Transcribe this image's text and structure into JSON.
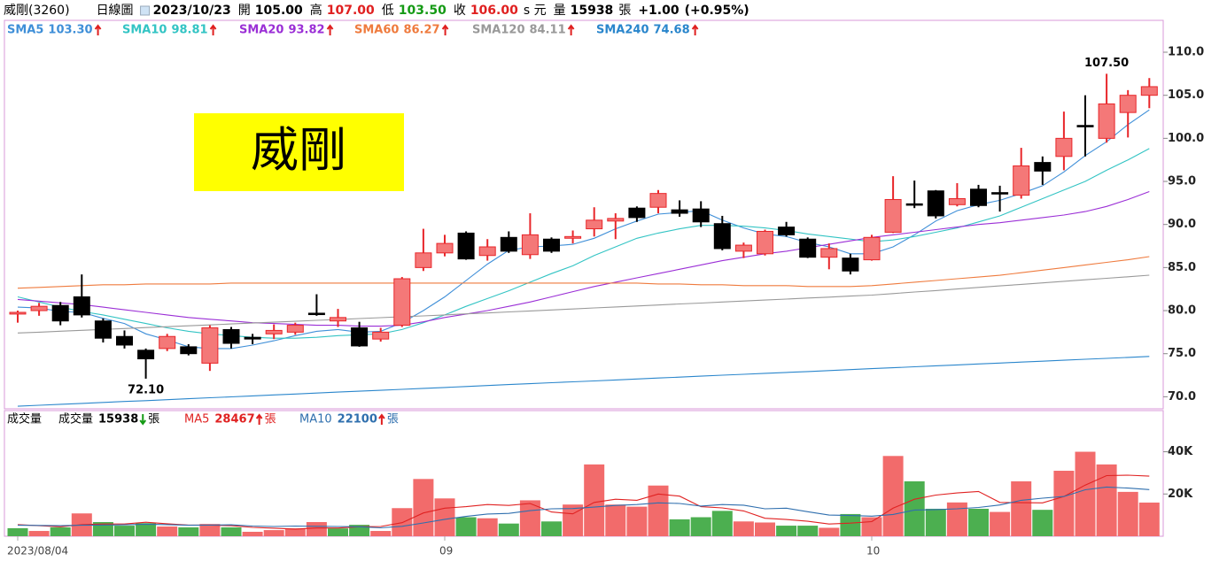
{
  "header": {
    "name": "威剛(3260)",
    "period": "日線圖",
    "date": "2023/10/23",
    "open_label": "開",
    "open": "105.00",
    "high_label": "高",
    "high": "107.00",
    "low_label": "低",
    "low": "103.50",
    "close_label": "收",
    "close": "106.00",
    "unit": "s 元",
    "volume_label": "量",
    "volume": "15938",
    "volume_unit": "張",
    "change": "+1.00",
    "change_pct": "(+0.95%)"
  },
  "chart_data": [
    {
      "type": "candlestick",
      "badge": "威剛",
      "categories": [
        "2023/08/04",
        null,
        null,
        null,
        null,
        null,
        null,
        null,
        null,
        null,
        null,
        null,
        null,
        null,
        null,
        null,
        null,
        null,
        null,
        null,
        "09",
        null,
        null,
        null,
        null,
        null,
        null,
        null,
        null,
        null,
        null,
        null,
        null,
        null,
        null,
        null,
        null,
        null,
        null,
        null,
        "10",
        null,
        null,
        null,
        null,
        null,
        null,
        null,
        null,
        null,
        null,
        null,
        null,
        null
      ],
      "open": [
        79.6,
        80.0,
        80.6,
        81.6,
        78.8,
        77.0,
        75.4,
        75.6,
        75.8,
        73.9,
        77.8,
        76.9,
        77.3,
        77.5,
        79.7,
        78.8,
        78.0,
        76.7,
        78.3,
        85.0,
        86.7,
        89.0,
        86.4,
        88.5,
        86.5,
        88.3,
        88.4,
        89.5,
        90.4,
        91.9,
        92.0,
        91.7,
        91.8,
        90.1,
        86.9,
        86.6,
        89.7,
        88.3,
        86.2,
        86.1,
        85.9,
        89.1,
        92.4,
        93.9,
        92.3,
        94.1,
        93.7,
        93.4,
        97.2,
        97.9,
        101.5,
        100.0,
        103.0,
        105.0
      ],
      "high": [
        80.0,
        80.9,
        81.0,
        84.2,
        79.1,
        77.7,
        75.6,
        77.3,
        76.1,
        78.3,
        78.1,
        77.3,
        78.4,
        78.6,
        81.9,
        80.2,
        78.7,
        78.0,
        83.9,
        89.5,
        88.8,
        89.2,
        88.3,
        89.2,
        91.3,
        88.5,
        89.3,
        92.0,
        91.3,
        92.1,
        94.0,
        92.8,
        92.7,
        91.0,
        87.9,
        89.4,
        90.3,
        88.5,
        87.8,
        86.6,
        88.8,
        95.6,
        95.1,
        94.0,
        94.8,
        94.6,
        94.5,
        98.9,
        97.9,
        103.1,
        105.0,
        107.5,
        105.6,
        107.0
      ],
      "low": [
        78.6,
        79.4,
        78.3,
        79.2,
        76.3,
        75.6,
        72.1,
        75.3,
        74.8,
        73.0,
        75.6,
        76.1,
        76.7,
        77.2,
        79.4,
        78.1,
        75.8,
        76.4,
        78.1,
        84.6,
        86.3,
        85.9,
        85.8,
        86.7,
        86.0,
        86.7,
        87.8,
        88.6,
        88.3,
        90.3,
        91.3,
        90.9,
        89.7,
        87.0,
        86.1,
        86.4,
        88.6,
        86.1,
        84.8,
        84.2,
        85.8,
        89.0,
        91.9,
        90.7,
        92.1,
        92.0,
        91.5,
        93.0,
        94.6,
        96.3,
        97.9,
        99.5,
        100.1,
        103.5
      ],
      "close": [
        79.8,
        80.5,
        78.8,
        79.5,
        76.8,
        76.0,
        74.4,
        77.0,
        75.0,
        78.0,
        76.2,
        76.7,
        77.7,
        78.3,
        79.6,
        79.2,
        75.9,
        77.5,
        83.7,
        86.7,
        87.8,
        86.0,
        87.4,
        86.9,
        88.8,
        86.9,
        88.6,
        90.5,
        90.7,
        90.8,
        93.6,
        91.3,
        90.3,
        87.2,
        87.6,
        89.2,
        88.8,
        86.2,
        87.2,
        84.6,
        88.5,
        92.9,
        92.3,
        91.0,
        93.0,
        92.2,
        93.6,
        96.8,
        96.2,
        100.0,
        101.4,
        104.0,
        105.0,
        106.0
      ],
      "high_labels": [
        null,
        null,
        null,
        null,
        null,
        null,
        null,
        null,
        null,
        null,
        null,
        null,
        null,
        null,
        null,
        null,
        null,
        null,
        null,
        null,
        null,
        null,
        null,
        null,
        null,
        null,
        null,
        null,
        null,
        null,
        null,
        null,
        null,
        null,
        null,
        null,
        null,
        null,
        null,
        null,
        null,
        null,
        null,
        null,
        null,
        null,
        null,
        null,
        null,
        null,
        null,
        "107.50",
        null,
        null
      ],
      "low_labels": [
        null,
        null,
        null,
        null,
        null,
        null,
        "72.10",
        null,
        null,
        null,
        null,
        null,
        null,
        null,
        null,
        null,
        null,
        null,
        null,
        null,
        null,
        null,
        null,
        null,
        null,
        null,
        null,
        null,
        null,
        null,
        null,
        null,
        null,
        null,
        null,
        null,
        null,
        null,
        null,
        null,
        null,
        null,
        null,
        null,
        null,
        null,
        null,
        null,
        null,
        null,
        null,
        null,
        null,
        null
      ],
      "up_color": "#f47878",
      "up_edge": "#e8262a",
      "down_color": "#000000",
      "series": [
        {
          "name": "SMA5",
          "legend_value": "103.30",
          "color": "#3f8fd8",
          "values": [
            80.4,
            80.3,
            79.9,
            79.8,
            79.1,
            78.5,
            77.3,
            76.6,
            75.8,
            75.6,
            75.6,
            76.0,
            76.5,
            77.1,
            77.6,
            77.8,
            77.5,
            77.6,
            78.6,
            80.0,
            81.6,
            83.5,
            85.4,
            87.0,
            87.4,
            87.5,
            87.7,
            88.4,
            89.5,
            90.4,
            91.2,
            91.4,
            91.6,
            90.5,
            89.6,
            88.9,
            88.6,
            87.9,
            87.4,
            86.6,
            86.6,
            87.4,
            88.8,
            90.4,
            91.6,
            92.3,
            92.8,
            93.6,
            94.5,
            96.1,
            98.0,
            99.6,
            101.6,
            103.3
          ]
        },
        {
          "name": "SMA10",
          "legend_value": "98.81",
          "color": "#33c4c4",
          "values": [
            81.6,
            81.0,
            80.4,
            79.9,
            79.5,
            79.0,
            78.5,
            78.0,
            77.6,
            77.3,
            77.1,
            76.9,
            76.8,
            76.8,
            76.9,
            77.1,
            77.2,
            77.3,
            77.8,
            78.6,
            79.5,
            80.5,
            81.4,
            82.3,
            83.3,
            84.3,
            85.2,
            86.4,
            87.4,
            88.4,
            89.0,
            89.5,
            89.9,
            89.9,
            89.8,
            89.6,
            89.3,
            88.9,
            88.6,
            88.3,
            88.0,
            88.2,
            88.6,
            89.1,
            89.6,
            90.3,
            91.0,
            92.0,
            93.0,
            94.0,
            95.0,
            96.3,
            97.5,
            98.81
          ]
        },
        {
          "name": "SMA20",
          "legend_value": "93.82",
          "color": "#9b2fd6",
          "values": [
            81.3,
            81.1,
            80.9,
            80.7,
            80.4,
            80.1,
            79.8,
            79.5,
            79.2,
            79.0,
            78.8,
            78.6,
            78.5,
            78.4,
            78.3,
            78.3,
            78.2,
            78.2,
            78.3,
            78.7,
            79.2,
            79.6,
            80.0,
            80.5,
            81.0,
            81.6,
            82.2,
            82.8,
            83.3,
            83.8,
            84.3,
            84.8,
            85.3,
            85.8,
            86.2,
            86.6,
            86.9,
            87.3,
            87.7,
            88.1,
            88.5,
            88.8,
            89.1,
            89.4,
            89.7,
            90.0,
            90.2,
            90.5,
            90.8,
            91.1,
            91.5,
            92.1,
            92.9,
            93.82
          ]
        },
        {
          "name": "SMA60",
          "legend_value": "86.27",
          "color": "#ef7b3e",
          "values": [
            82.6,
            82.7,
            82.8,
            82.9,
            83.0,
            83.0,
            83.1,
            83.1,
            83.1,
            83.1,
            83.2,
            83.2,
            83.2,
            83.2,
            83.2,
            83.2,
            83.2,
            83.2,
            83.2,
            83.2,
            83.2,
            83.2,
            83.2,
            83.2,
            83.2,
            83.2,
            83.2,
            83.2,
            83.2,
            83.2,
            83.1,
            83.1,
            83.0,
            83.0,
            82.9,
            82.9,
            82.9,
            82.8,
            82.8,
            82.8,
            82.9,
            83.1,
            83.3,
            83.5,
            83.7,
            83.9,
            84.1,
            84.4,
            84.7,
            85.0,
            85.3,
            85.6,
            85.9,
            86.27
          ]
        },
        {
          "name": "SMA120",
          "legend_value": "84.11",
          "color": "#999999",
          "values": [
            77.4,
            77.5,
            77.61,
            77.71,
            77.82,
            77.92,
            78.03,
            78.13,
            78.24,
            78.34,
            78.45,
            78.55,
            78.66,
            78.76,
            78.87,
            78.97,
            79.08,
            79.18,
            79.29,
            79.39,
            79.5,
            79.62,
            79.73,
            79.85,
            79.96,
            80.08,
            80.19,
            80.31,
            80.42,
            80.54,
            80.65,
            80.77,
            80.88,
            81.0,
            81.11,
            81.23,
            81.34,
            81.46,
            81.57,
            81.69,
            81.8,
            81.98,
            82.16,
            82.33,
            82.51,
            82.69,
            82.87,
            83.04,
            83.22,
            83.4,
            83.58,
            83.75,
            83.93,
            84.11
          ]
        },
        {
          "name": "SMA240",
          "legend_value": "74.68",
          "color": "#2a86cc",
          "values": [
            68.9,
            69.01,
            69.12,
            69.23,
            69.34,
            69.45,
            69.55,
            69.66,
            69.77,
            69.88,
            69.99,
            70.1,
            70.21,
            70.32,
            70.43,
            70.54,
            70.64,
            70.75,
            70.86,
            70.97,
            71.08,
            71.19,
            71.3,
            71.41,
            71.52,
            71.63,
            71.73,
            71.84,
            71.95,
            72.06,
            72.17,
            72.28,
            72.39,
            72.5,
            72.61,
            72.72,
            72.82,
            72.93,
            73.04,
            73.15,
            73.26,
            73.37,
            73.48,
            73.59,
            73.7,
            73.81,
            73.91,
            74.02,
            74.13,
            74.24,
            74.35,
            74.46,
            74.57,
            74.68
          ]
        }
      ],
      "ylim": [
        68.6,
        113.7
      ],
      "yticks": [
        {
          "value": 70,
          "label": "70.0"
        },
        {
          "value": 75,
          "label": "75.0"
        },
        {
          "value": 80,
          "label": "80.0"
        },
        {
          "value": 85,
          "label": "85.0"
        },
        {
          "value": 90,
          "label": "90.0"
        },
        {
          "value": 95,
          "label": "95.0"
        },
        {
          "value": 100,
          "label": "100.0"
        },
        {
          "value": 105,
          "label": "105.0"
        },
        {
          "value": 110,
          "label": "110.0"
        }
      ]
    },
    {
      "type": "bar",
      "title": "成交量",
      "unit": "張",
      "series": [
        {
          "name": "成交量",
          "legend_value": "15938",
          "trend": "down",
          "values": [
            3800,
            2500,
            4200,
            10800,
            6700,
            5000,
            6200,
            4600,
            4200,
            5800,
            4200,
            2100,
            2900,
            3700,
            6700,
            3700,
            5400,
            2500,
            13300,
            27100,
            17900,
            9000,
            8500,
            6000,
            17000,
            7000,
            15000,
            34000,
            15000,
            14000,
            24000,
            8000,
            9000,
            12000,
            7000,
            6500,
            5000,
            5000,
            4000,
            10500,
            9000,
            38000,
            26000,
            13000,
            16000,
            13000,
            11500,
            26000,
            12500,
            31000,
            40000,
            34000,
            21000,
            15938
          ],
          "bar_colors": [
            "#4caf50",
            "#f26b6b",
            "#4caf50",
            "#f26b6b",
            "#4caf50",
            "#4caf50",
            "#4caf50",
            "#f26b6b",
            "#4caf50",
            "#f26b6b",
            "#4caf50",
            "#f26b6b",
            "#f26b6b",
            "#f26b6b",
            "#f26b6b",
            "#4caf50",
            "#4caf50",
            "#f26b6b",
            "#f26b6b",
            "#f26b6b",
            "#f26b6b",
            "#4caf50",
            "#f26b6b",
            "#4caf50",
            "#f26b6b",
            "#4caf50",
            "#f26b6b",
            "#f26b6b",
            "#f26b6b",
            "#f26b6b",
            "#f26b6b",
            "#4caf50",
            "#4caf50",
            "#4caf50",
            "#f26b6b",
            "#f26b6b",
            "#4caf50",
            "#4caf50",
            "#f26b6b",
            "#4caf50",
            "#f26b6b",
            "#f26b6b",
            "#4caf50",
            "#4caf50",
            "#f26b6b",
            "#4caf50",
            "#f26b6b",
            "#f26b6b",
            "#4caf50",
            "#f26b6b",
            "#f26b6b",
            "#f26b6b",
            "#f26b6b",
            "#f26b6b"
          ]
        },
        {
          "name": "MA5",
          "legend_value": "28467",
          "trend": "up",
          "color": "#e02222",
          "values": [
            5500,
            5000,
            4500,
            5500,
            5800,
            5800,
            6600,
            5900,
            5300,
            5300,
            5000,
            4200,
            3800,
            3400,
            3900,
            3900,
            4500,
            4600,
            6400,
            11000,
            13300,
            14000,
            15000,
            14600,
            15500,
            11500,
            10600,
            16000,
            17500,
            17000,
            20000,
            19000,
            14000,
            13400,
            12000,
            8500,
            7900,
            7100,
            5800,
            6200,
            6900,
            13300,
            17500,
            19500,
            20500,
            21200,
            16000,
            15900,
            15800,
            18800,
            24200,
            28700,
            28900,
            28467
          ]
        },
        {
          "name": "MA10",
          "legend_value": "22100",
          "trend": "up",
          "color": "#2f6fae",
          "values": [
            5200,
            5100,
            5000,
            5200,
            5300,
            5400,
            5700,
            5500,
            5200,
            5300,
            5400,
            4800,
            4600,
            4800,
            4700,
            4600,
            4500,
            4000,
            4700,
            6300,
            8000,
            9400,
            10500,
            10800,
            12100,
            13000,
            13100,
            13800,
            14600,
            15000,
            15800,
            15500,
            14300,
            15000,
            14700,
            13000,
            13300,
            11600,
            10000,
            9800,
            9500,
            10300,
            12400,
            12600,
            13000,
            13600,
            14800,
            17000,
            18000,
            18800,
            22000,
            23300,
            22800,
            22100
          ]
        }
      ],
      "ylim": [
        0,
        59500
      ],
      "yticks": [
        {
          "value": 20000,
          "label": "20K"
        },
        {
          "value": 40000,
          "label": "40K"
        }
      ]
    }
  ]
}
